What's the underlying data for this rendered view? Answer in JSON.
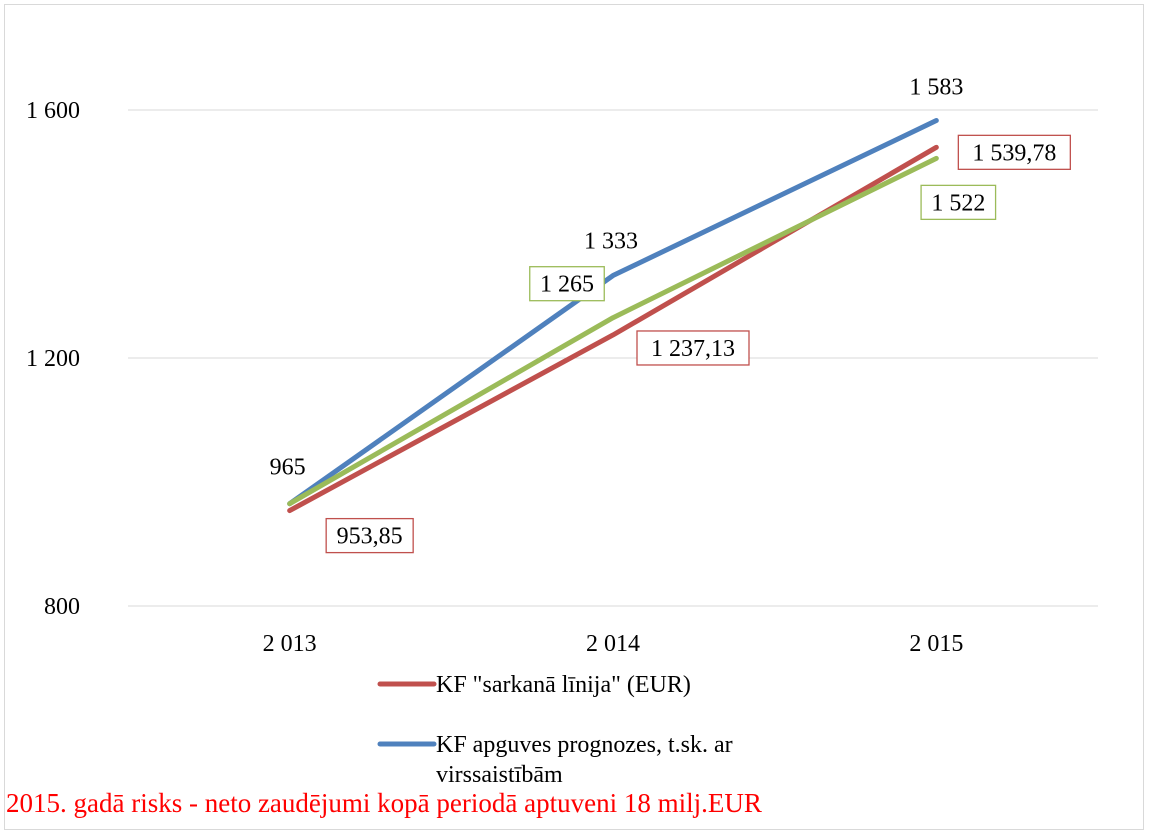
{
  "chart_data": {
    "type": "line",
    "categories": [
      "2 013",
      "2 014",
      "2 015"
    ],
    "ylim": [
      800,
      1700
    ],
    "y_ticks": [
      800,
      1200,
      1600
    ],
    "y_tick_labels": [
      "800",
      "1 200",
      "1 600"
    ],
    "grid": true,
    "legend_position": "bottom",
    "series": [
      {
        "name": "KF \"sarkanā līnija\" (EUR)",
        "color": "#c0504d",
        "values": [
          953.85,
          1237.13,
          1539.78
        ],
        "labels": [
          "953,85",
          "1 237,13",
          "1 539,78"
        ],
        "label_boxed": true,
        "in_legend": true
      },
      {
        "name": "KF apguves prognozes, t.sk. ar virssaistībām",
        "color": "#4f81bd",
        "values": [
          965,
          1333,
          1583
        ],
        "labels": [
          "965",
          "1 333",
          "1 583"
        ],
        "label_boxed": false,
        "in_legend": true
      },
      {
        "name": "",
        "color": "#9bbb59",
        "values": [
          965,
          1265,
          1522
        ],
        "labels": [
          "",
          "1 265",
          "1 522"
        ],
        "label_boxed": true,
        "in_legend": false
      }
    ]
  },
  "footnote": "2015. gadā risks - neto zaudējumi kopā periodā aptuveni 18 milj.EUR"
}
